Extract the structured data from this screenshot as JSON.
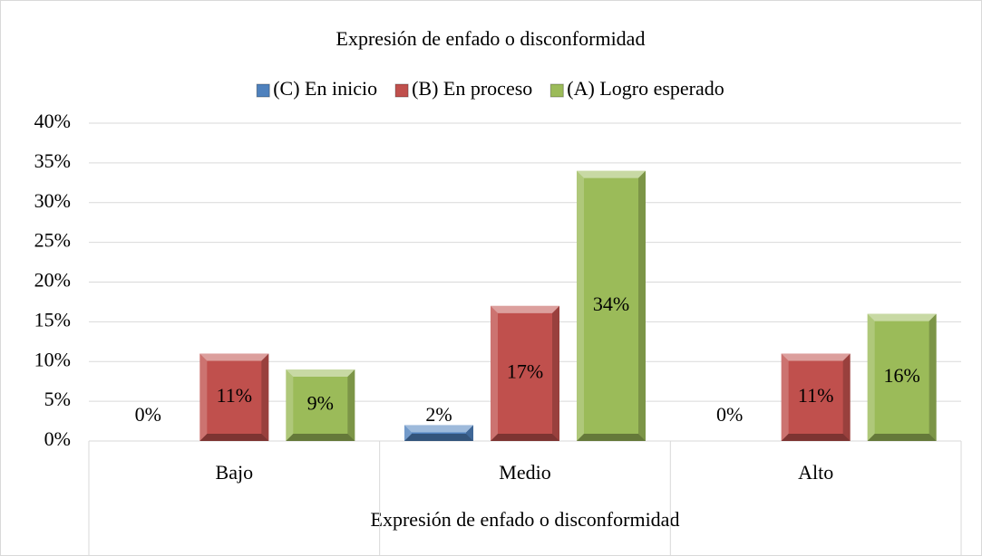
{
  "chart_data": {
    "type": "bar",
    "title": "Expresión de enfado o disconformidad",
    "x_label": "Expresión de enfado o disconformidad",
    "categories": [
      "Bajo",
      "Medio",
      "Alto"
    ],
    "series": [
      {
        "name": "(C) En inicio",
        "color": "#4f81bd",
        "values": [
          0,
          2,
          0
        ],
        "value_labels": [
          "0%",
          "2%",
          "0%"
        ]
      },
      {
        "name": "(B) En proceso",
        "color": "#c0504d",
        "values": [
          11,
          17,
          11
        ],
        "value_labels": [
          "11%",
          "17%",
          "11%"
        ]
      },
      {
        "name": "(A) Logro esperado",
        "color": "#9bbb59",
        "values": [
          9,
          34,
          16
        ],
        "value_labels": [
          "9%",
          "34%",
          "16%"
        ]
      }
    ],
    "ylim": [
      0,
      40
    ],
    "yticks": [
      {
        "value": 0,
        "label": "0%"
      },
      {
        "value": 5,
        "label": "5%"
      },
      {
        "value": 10,
        "label": "10%"
      },
      {
        "value": 15,
        "label": "15%"
      },
      {
        "value": 20,
        "label": "20%"
      },
      {
        "value": 25,
        "label": "25%"
      },
      {
        "value": 30,
        "label": "30%"
      },
      {
        "value": 35,
        "label": "35%"
      },
      {
        "value": 40,
        "label": "40%"
      }
    ],
    "grid": true,
    "legend": "top"
  }
}
